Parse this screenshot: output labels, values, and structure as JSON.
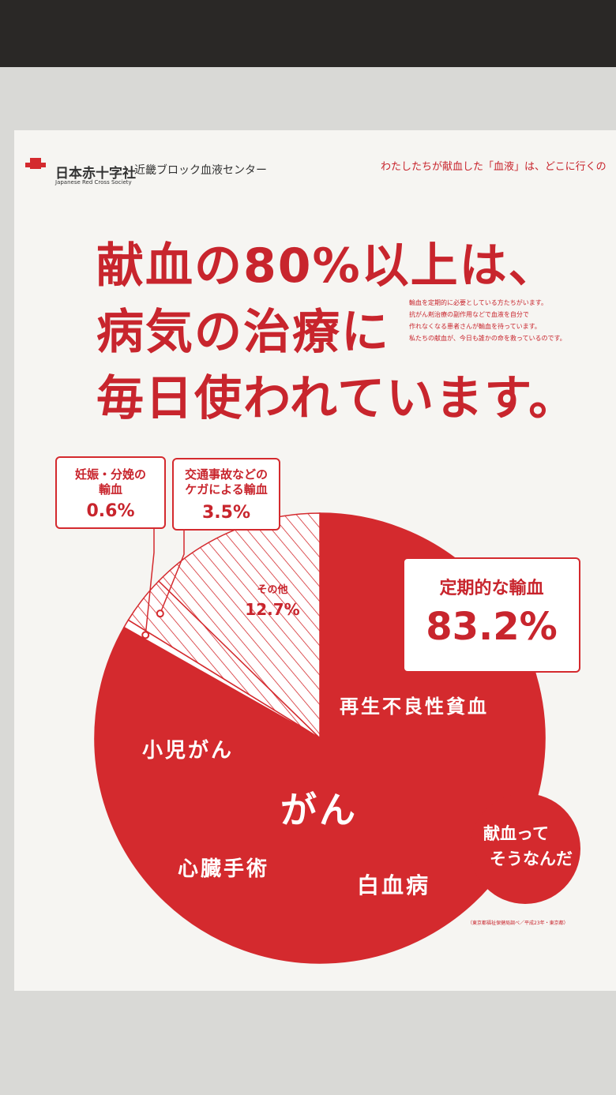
{
  "header": {
    "org": "日本赤十字社",
    "org_en": "Japanese Red Cross Society",
    "center": "近畿ブロック血液センター",
    "tagline": "わたしたちが献血した「血液」は、どこに行くの"
  },
  "title_lines": [
    "献血の80%以上は、",
    "病気の治療に",
    "毎日使われています。"
  ],
  "note_lines": [
    "輸血を定期的に必要としている方たちがいます。",
    "抗がん剤治療の副作用などで血液を自分で",
    "作れなくなる患者さんが輸血を待っています。",
    "私たちの献血が、今日も誰かの命を救っているのです。"
  ],
  "badge_lines": [
    "献血って",
    "そうなんだ"
  ],
  "source": "（東京都福祉保健局調べ／平成23年・東京都）",
  "chart_data": {
    "type": "pie",
    "categories": [
      "定期的な輸血",
      "妊娠・分娩の\n輸血",
      "交通事故などの\nケガによる輸血",
      "その他"
    ],
    "values": [
      83.2,
      0.6,
      3.5,
      12.7
    ],
    "value_labels": [
      "83.2%",
      "0.6%",
      "3.5%",
      "12.7%"
    ],
    "colors": [
      "#d42a2e",
      "#ffffff",
      "#ffffff",
      "#ffffff"
    ],
    "hatch": [
      false,
      false,
      true,
      true
    ],
    "inner_labels": [
      "再生不良性貧血",
      "小児がん",
      "がん",
      "心臓手術",
      "白血病"
    ]
  }
}
